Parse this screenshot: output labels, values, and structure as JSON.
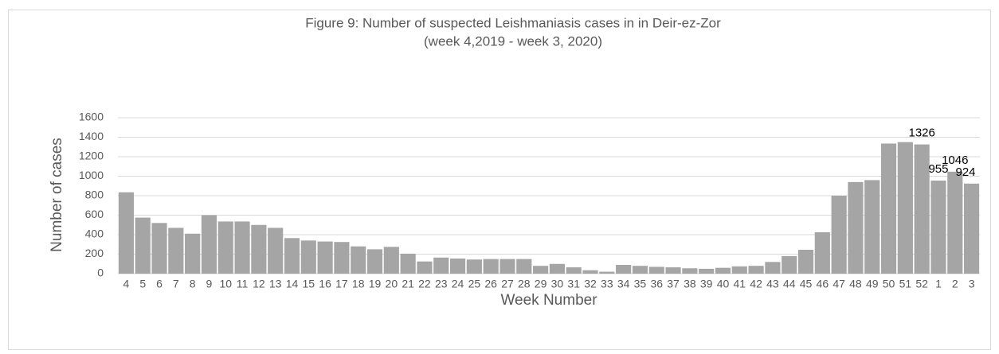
{
  "chart_data": {
    "type": "bar",
    "title": "Figure 9: Number of suspected Leishmaniasis cases in in Deir-ez-Zor",
    "subtitle": "(week 4,2019 - week 3, 2020)",
    "x_label": "Week Number",
    "y_label": "Number of cases",
    "categories": [
      "4",
      "5",
      "6",
      "7",
      "8",
      "9",
      "10",
      "11",
      "12",
      "13",
      "14",
      "15",
      "16",
      "17",
      "18",
      "19",
      "20",
      "21",
      "22",
      "23",
      "24",
      "25",
      "26",
      "27",
      "28",
      "29",
      "30",
      "31",
      "32",
      "33",
      "34",
      "35",
      "36",
      "37",
      "38",
      "39",
      "40",
      "41",
      "42",
      "43",
      "44",
      "45",
      "46",
      "47",
      "48",
      "49",
      "50",
      "51",
      "52",
      "1",
      "2",
      "3"
    ],
    "values": [
      835,
      575,
      520,
      470,
      410,
      600,
      535,
      535,
      500,
      470,
      365,
      340,
      330,
      325,
      280,
      250,
      275,
      205,
      125,
      165,
      155,
      145,
      150,
      150,
      150,
      80,
      100,
      65,
      35,
      20,
      90,
      80,
      70,
      65,
      55,
      50,
      60,
      75,
      80,
      120,
      180,
      245,
      425,
      800,
      940,
      960,
      1335,
      1350,
      1326,
      955,
      1046,
      924
    ],
    "value_labels": [
      null,
      null,
      null,
      null,
      null,
      null,
      null,
      null,
      null,
      null,
      null,
      null,
      null,
      null,
      null,
      null,
      null,
      null,
      null,
      null,
      null,
      null,
      null,
      null,
      null,
      null,
      null,
      null,
      null,
      null,
      null,
      null,
      null,
      null,
      null,
      null,
      null,
      null,
      null,
      null,
      null,
      null,
      null,
      null,
      null,
      null,
      null,
      null,
      "1326",
      "955",
      "1046",
      "924"
    ],
    "color": "#a5a5a5",
    "ylim": [
      0,
      1600
    ],
    "yticks": [
      0,
      200,
      400,
      600,
      800,
      1000,
      1200,
      1400,
      1600
    ],
    "grid": true
  }
}
